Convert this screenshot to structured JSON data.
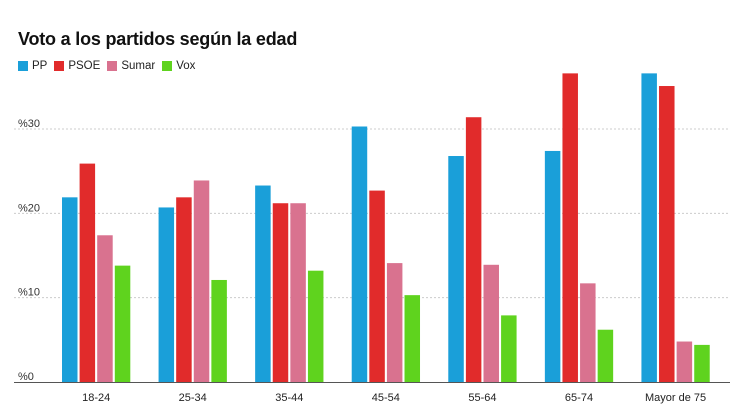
{
  "chart_data": {
    "type": "bar",
    "title": "Voto a los partidos según la edad",
    "categories": [
      "18-24",
      "25-34",
      "35-44",
      "45-54",
      "55-64",
      "65-74",
      "Mayor de 75"
    ],
    "series": [
      {
        "name": "PP",
        "color": "#1a9fd9",
        "values": [
          21.9,
          20.7,
          23.3,
          30.3,
          26.8,
          27.4,
          36.6
        ]
      },
      {
        "name": "PSOE",
        "color": "#e12b2b",
        "values": [
          25.9,
          21.9,
          21.2,
          22.7,
          31.4,
          36.6,
          35.1
        ]
      },
      {
        "name": "Sumar",
        "color": "#d9728f",
        "values": [
          17.4,
          23.9,
          21.2,
          14.1,
          13.9,
          11.7,
          4.8
        ]
      },
      {
        "name": "Vox",
        "color": "#5fd31e",
        "values": [
          13.8,
          12.1,
          13.2,
          10.3,
          7.9,
          6.2,
          4.4
        ]
      }
    ],
    "ylim": [
      0,
      37
    ],
    "yticks": [
      {
        "value": 0,
        "label": "%0"
      },
      {
        "value": 10,
        "label": "%10"
      },
      {
        "value": 20,
        "label": "%20"
      },
      {
        "value": 30,
        "label": "%30"
      }
    ],
    "grid": true,
    "legend": "top-left"
  }
}
